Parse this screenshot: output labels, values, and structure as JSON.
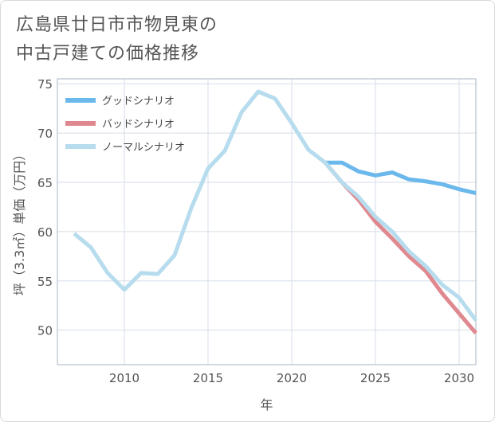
{
  "chart_data": {
    "type": "line",
    "title": "広島県廿日市市物見東の\n中古戸建ての価格推移",
    "xlabel": "年",
    "ylabel": "坪（3.3㎡）単価（万円）",
    "xlim": [
      2006,
      2031
    ],
    "ylim": [
      46.5,
      75.5
    ],
    "xticks": [
      2010,
      2015,
      2020,
      2025,
      2030
    ],
    "yticks": [
      50,
      55,
      60,
      65,
      70,
      75
    ],
    "grid": true,
    "legend_position": "top-left",
    "series": [
      {
        "name": "グッドシナリオ",
        "color": "#6bb8ec",
        "x": [
          2022,
          2023,
          2024,
          2025,
          2026,
          2027,
          2028,
          2029,
          2030,
          2031
        ],
        "values": [
          67.0,
          67.0,
          66.1,
          65.7,
          66.0,
          65.3,
          65.1,
          64.8,
          64.3,
          63.9
        ]
      },
      {
        "name": "バッドシナリオ",
        "color": "#e0888f",
        "x": [
          2022,
          2023,
          2024,
          2025,
          2026,
          2027,
          2028,
          2029,
          2030,
          2031
        ],
        "values": [
          67.0,
          65.0,
          63.2,
          61.0,
          59.3,
          57.5,
          56.0,
          53.7,
          51.7,
          49.7
        ]
      },
      {
        "name": "ノーマルシナリオ",
        "color": "#b7dcee",
        "x": [
          2007,
          2008,
          2009,
          2010,
          2011,
          2012,
          2013,
          2014,
          2015,
          2016,
          2017,
          2018,
          2019,
          2020,
          2021,
          2022,
          2023,
          2024,
          2025,
          2026,
          2027,
          2028,
          2029,
          2030,
          2031
        ],
        "values": [
          59.8,
          58.4,
          55.8,
          54.1,
          55.8,
          55.7,
          57.6,
          62.4,
          66.4,
          68.2,
          72.1,
          74.2,
          73.5,
          71.0,
          68.3,
          67.0,
          65.0,
          63.5,
          61.5,
          60.0,
          58.0,
          56.5,
          54.6,
          53.3,
          51.0
        ]
      }
    ]
  }
}
